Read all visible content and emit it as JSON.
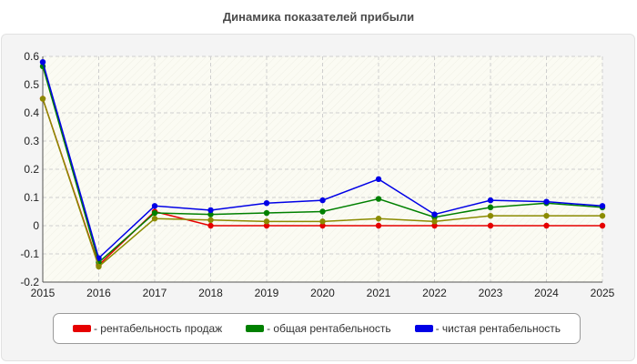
{
  "chart_data": {
    "type": "line",
    "title": "Динамика показателей прибыли",
    "xlabel": "",
    "ylabel": "",
    "x": [
      "2015",
      "2016",
      "2017",
      "2018",
      "2019",
      "2020",
      "2021",
      "2022",
      "2023",
      "2024",
      "2025"
    ],
    "ylim": [
      -0.2,
      0.6
    ],
    "yticks": [
      "0.6",
      "0.5",
      "0.4",
      "0.3",
      "0.2",
      "0.1",
      "0",
      "-0.1",
      "-0.2"
    ],
    "grid": true,
    "legend_position": "bottom",
    "series": [
      {
        "name": "рентабельность продаж",
        "color": "#e60000",
        "values": [
          0.45,
          -0.14,
          0.05,
          0.0,
          0.0,
          0.0,
          0.0,
          0.0,
          0.0,
          0.0,
          0.0
        ]
      },
      {
        "name": "общая рентабельность",
        "color": "#008000",
        "values": [
          0.565,
          -0.13,
          0.045,
          0.04,
          0.045,
          0.05,
          0.095,
          0.03,
          0.065,
          0.08,
          0.065
        ]
      },
      {
        "name": "чистая рентабельность",
        "color": "#0000e6",
        "values": [
          0.58,
          -0.115,
          0.07,
          0.055,
          0.08,
          0.09,
          0.165,
          0.04,
          0.09,
          0.085,
          0.07
        ]
      },
      {
        "name": "",
        "color": "#8b8b00",
        "values": [
          0.45,
          -0.145,
          0.025,
          0.02,
          0.015,
          0.015,
          0.025,
          0.015,
          0.035,
          0.035,
          0.035
        ]
      }
    ]
  },
  "legend": {
    "items": [
      {
        "label": "- рентабельность продаж",
        "color": "#e60000"
      },
      {
        "label": "- общая рентабельность",
        "color": "#008000"
      },
      {
        "label": "- чистая рентабельность",
        "color": "#0000e6"
      }
    ]
  }
}
